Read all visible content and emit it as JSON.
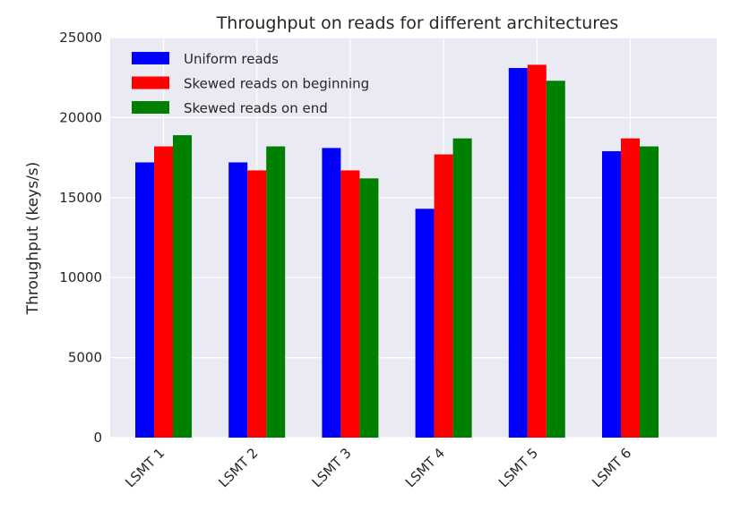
{
  "chart_data": {
    "type": "bar",
    "title": "Throughput on reads for different architectures",
    "xlabel": "",
    "ylabel": "Throughput (keys/s)",
    "ylim": [
      0,
      25000
    ],
    "yticks": [
      0,
      5000,
      10000,
      15000,
      20000,
      25000
    ],
    "grid": true,
    "legend_position": "top-left",
    "categories": [
      "LSMT 1",
      "LSMT 2",
      "LSMT 3",
      "LSMT 4",
      "LSMT 5",
      "LSMT 6"
    ],
    "series": [
      {
        "name": "Uniform reads",
        "color": "#0000ff",
        "values": [
          17200,
          17200,
          18100,
          14300,
          23100,
          17900
        ]
      },
      {
        "name": "Skewed reads on beginning",
        "color": "#ff0000",
        "values": [
          18200,
          16700,
          16700,
          17700,
          23300,
          18700
        ]
      },
      {
        "name": "Skewed reads on end",
        "color": "#008000",
        "values": [
          18900,
          18200,
          16200,
          18700,
          22300,
          18200
        ]
      }
    ]
  },
  "style": {
    "plot_background": "#eaeaf2",
    "grid_color": "#ffffff"
  }
}
